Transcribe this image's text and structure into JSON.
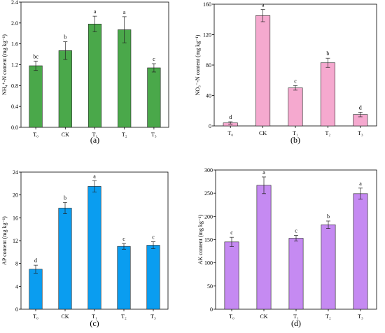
{
  "chart_data": [
    {
      "type": "bar",
      "panel_label": "(a)",
      "ylabel": "NH₄⁺-N content (mg kg⁻¹)",
      "categories": [
        "T₀",
        "CK",
        "T₁",
        "T₂",
        "T₃"
      ],
      "values": [
        1.18,
        1.47,
        1.98,
        1.87,
        1.14
      ],
      "errors": [
        0.09,
        0.17,
        0.15,
        0.25,
        0.08
      ],
      "significance": [
        "bc",
        "b",
        "a",
        "a",
        "c"
      ],
      "ylim": [
        0,
        2.4
      ],
      "yticks": [
        "0.0",
        "0.4",
        "0.8",
        "1.2",
        "1.6",
        "2.0",
        "2.4"
      ],
      "color": "#4aa84a"
    },
    {
      "type": "bar",
      "panel_label": "(b)",
      "ylabel": "NO₃⁻-N content (mg kg⁻¹)",
      "categories": [
        "T₀",
        "CK",
        "T₁",
        "T₂",
        "T₃"
      ],
      "values": [
        4,
        145,
        50,
        83,
        15
      ],
      "errors": [
        1.5,
        8,
        3,
        6,
        3
      ],
      "significance": [
        "d",
        "a",
        "c",
        "b",
        "d"
      ],
      "ylim": [
        0,
        160
      ],
      "yticks": [
        "0",
        "40",
        "80",
        "120",
        "160"
      ],
      "color": "#f5a9cf"
    },
    {
      "type": "bar",
      "panel_label": "(c)",
      "ylabel": "AP content (mg kg⁻¹)",
      "categories": [
        "T₀",
        "CK",
        "T₁",
        "T₂",
        "T₃"
      ],
      "values": [
        7.0,
        17.7,
        21.5,
        11.0,
        11.2
      ],
      "errors": [
        0.7,
        1.0,
        1.0,
        0.5,
        0.6
      ],
      "significance": [
        "d",
        "b",
        "a",
        "c",
        "c"
      ],
      "ylim": [
        0,
        24
      ],
      "yticks": [
        "0",
        "4",
        "8",
        "12",
        "16",
        "20",
        "24"
      ],
      "color": "#0a9df0"
    },
    {
      "type": "bar",
      "panel_label": "(d)",
      "ylabel": "AK content (mg kg⁻¹)",
      "categories": [
        "T₀",
        "CK",
        "T₁",
        "T₂",
        "T₃"
      ],
      "values": [
        145,
        267,
        153,
        182,
        249
      ],
      "errors": [
        10,
        18,
        6,
        8,
        12
      ],
      "significance": [
        "c",
        "a",
        "c",
        "b",
        "a"
      ],
      "ylim": [
        0,
        300
      ],
      "yticks": [
        "0",
        "50",
        "100",
        "150",
        "200",
        "250",
        "300"
      ],
      "color": "#c58af2"
    }
  ]
}
